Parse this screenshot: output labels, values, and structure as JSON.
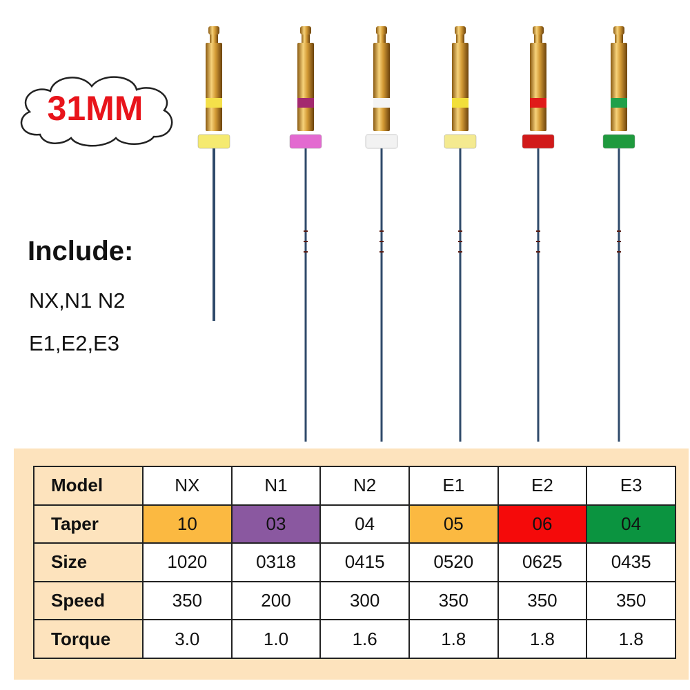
{
  "badge": {
    "label": "31MM",
    "color": "#e8141b"
  },
  "include": {
    "title": "Include:",
    "lines": [
      "NX,N1 N2",
      "E1,E2,E3"
    ]
  },
  "files": [
    {
      "model": "NX",
      "ring": "#f4e04a",
      "stopper": "#f5ea70"
    },
    {
      "model": "N1",
      "ring": "#a3296f",
      "stopper": "#e36ad0"
    },
    {
      "model": "N2",
      "ring": "#f4f4f4",
      "stopper": "#f2f2f2"
    },
    {
      "model": "E1",
      "ring": "#f2df3a",
      "stopper": "#f4ea90"
    },
    {
      "model": "E2",
      "ring": "#e01a1a",
      "stopper": "#d11a1a"
    },
    {
      "model": "E3",
      "ring": "#21a04a",
      "stopper": "#1f9a3e"
    }
  ],
  "table": {
    "rows": [
      {
        "label": "Model",
        "cells": [
          "NX",
          "N1",
          "N2",
          "E1",
          "E2",
          "E3"
        ]
      },
      {
        "label": "Taper",
        "cells": [
          "10",
          "03",
          "04",
          "05",
          "06",
          "04"
        ],
        "colors": [
          "#fbb941",
          "#8a58a0",
          "#ffffff",
          "#fbb941",
          "#f50a0a",
          "#0b9440"
        ]
      },
      {
        "label": "Size",
        "cells": [
          "1020",
          "0318",
          "0415",
          "0520",
          "0625",
          "0435"
        ]
      },
      {
        "label": "Speed",
        "cells": [
          "350",
          "200",
          "300",
          "350",
          "350",
          "350"
        ]
      },
      {
        "label": "Torque",
        "cells": [
          "3.0",
          "1.0",
          "1.6",
          "1.8",
          "1.8",
          "1.8"
        ]
      }
    ]
  }
}
